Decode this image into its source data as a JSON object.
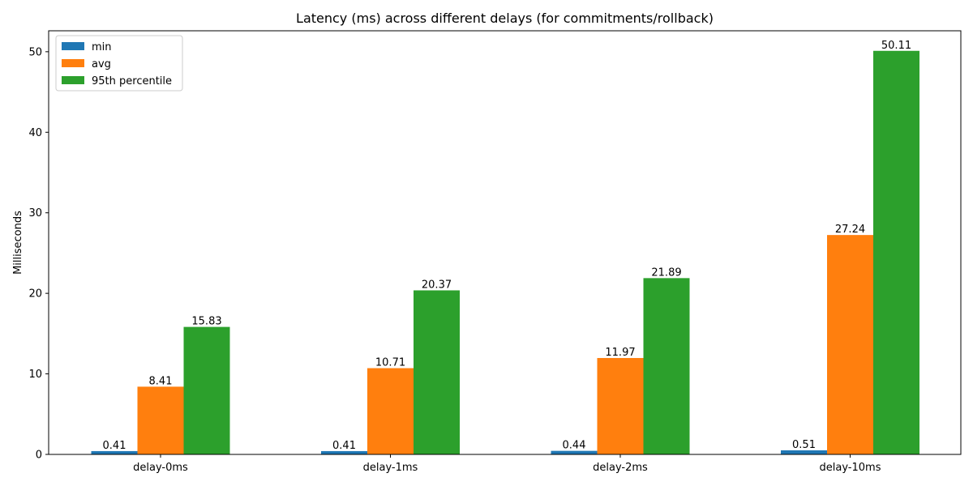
{
  "chart_data": {
    "type": "bar",
    "title": "Latency (ms) across different delays (for commitments/rollback)",
    "xlabel": "",
    "ylabel": "Milliseconds",
    "categories": [
      "delay-0ms",
      "delay-1ms",
      "delay-2ms",
      "delay-10ms"
    ],
    "series": [
      {
        "name": "min",
        "color": "#1f77b4",
        "values": [
          0.41,
          0.41,
          0.44,
          0.51
        ],
        "labels": [
          "0.41",
          "0.41",
          "0.44",
          "0.51"
        ]
      },
      {
        "name": "avg",
        "color": "#ff7f0e",
        "values": [
          8.41,
          10.71,
          11.97,
          27.24
        ],
        "labels": [
          "8.41",
          "10.71",
          "11.97",
          "27.24"
        ]
      },
      {
        "name": "95th percentile",
        "color": "#2ca02c",
        "values": [
          15.83,
          20.37,
          21.89,
          50.11
        ],
        "labels": [
          "15.83",
          "20.37",
          "21.89",
          "50.11"
        ]
      }
    ],
    "ylim": [
      0,
      52.6
    ],
    "yticks": [
      "0",
      "10",
      "20",
      "30",
      "40",
      "50"
    ],
    "grid": false,
    "legend": "upper-left"
  }
}
